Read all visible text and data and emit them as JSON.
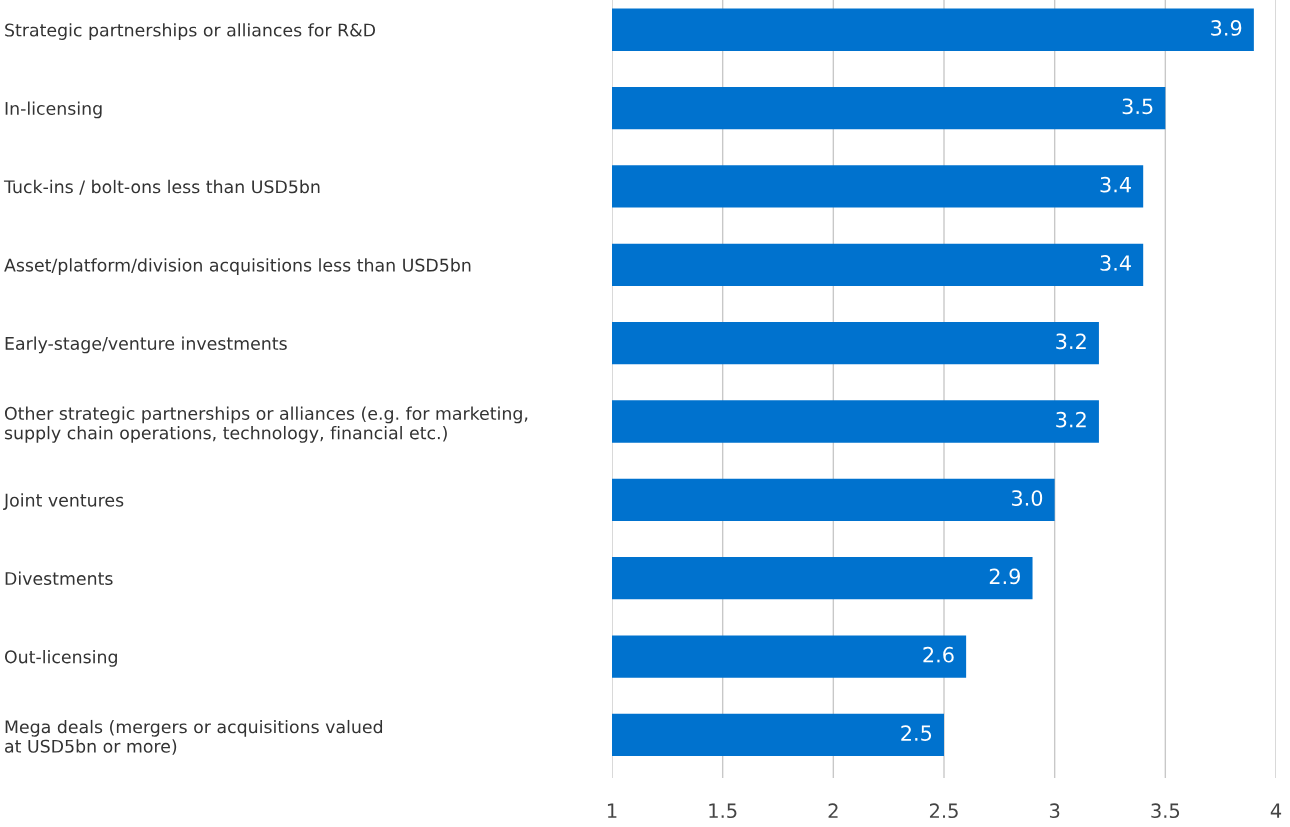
{
  "chart_data": {
    "type": "bar",
    "orientation": "horizontal",
    "categories": [
      "Strategic partnerships or alliances for R&D",
      "In-licensing",
      "Tuck-ins / bolt-ons less than USD5bn",
      "Asset/platform/division acquisitions less than USD5bn",
      "Early-stage/venture investments",
      "Other strategic partnerships or alliances (e.g. for marketing,\nsupply chain operations, technology, financial etc.)",
      "Joint ventures",
      "Divestments",
      "Out-licensing",
      "Mega deals (mergers or acquisitions valued\nat USD5bn or more)"
    ],
    "values": [
      3.9,
      3.5,
      3.4,
      3.4,
      3.2,
      3.2,
      3.0,
      2.9,
      2.6,
      2.5
    ],
    "value_labels": [
      "3.9",
      "3.5",
      "3.4",
      "3.4",
      "3.2",
      "3.2",
      "3.0",
      "2.9",
      "2.6",
      "2.5"
    ],
    "color": "#0072ce",
    "xlim": [
      1,
      4
    ],
    "xticks": [
      1,
      1.5,
      2,
      2.5,
      3,
      3.5,
      4
    ],
    "grid": "x"
  }
}
